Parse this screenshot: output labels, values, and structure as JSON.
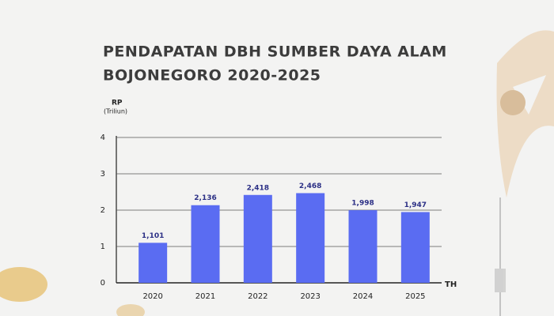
{
  "chart_data": {
    "type": "bar",
    "title": [
      "PENDAPATAN DBH SUMBER DAYA ALAM",
      "BOJONEGORO 2020-2025"
    ],
    "ylabel": "RP",
    "yunit": "(Triliun)",
    "xlabel": "TH",
    "categories": [
      "2020",
      "2021",
      "2022",
      "2023",
      "2024",
      "2025"
    ],
    "values": [
      1.101,
      2.136,
      2.418,
      2.468,
      1.998,
      1.947
    ],
    "value_labels": [
      "1,101",
      "2,136",
      "2,418",
      "2,468",
      "1,998",
      "1,947"
    ],
    "color": "#5a6cf2",
    "ylim": [
      0,
      4
    ],
    "yticks": [
      0,
      1,
      2,
      3,
      4
    ],
    "grid": true
  }
}
